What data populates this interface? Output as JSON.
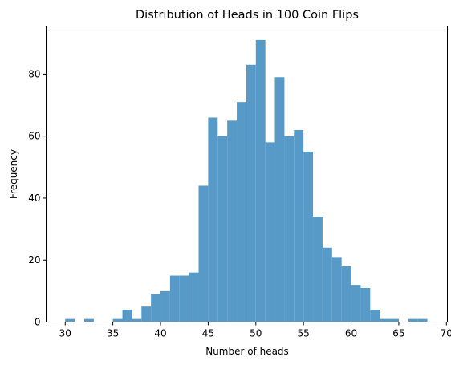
{
  "chart_data": {
    "type": "bar",
    "title": "Distribution of Heads in 100 Coin Flips",
    "xlabel": "Number of heads",
    "ylabel": "Frequency",
    "xlim": [
      28,
      70.1
    ],
    "ylim": [
      0,
      95.5
    ],
    "xticks": [
      30,
      35,
      40,
      45,
      50,
      55,
      60,
      65,
      70
    ],
    "yticks": [
      0,
      20,
      40,
      60,
      80
    ],
    "bar_color": "#5799c7",
    "bin_width": 1,
    "bins": [
      {
        "start": 30,
        "count": 1
      },
      {
        "start": 31,
        "count": 0
      },
      {
        "start": 32,
        "count": 1
      },
      {
        "start": 33,
        "count": 0
      },
      {
        "start": 34,
        "count": 0
      },
      {
        "start": 35,
        "count": 1
      },
      {
        "start": 36,
        "count": 4
      },
      {
        "start": 37,
        "count": 1
      },
      {
        "start": 38,
        "count": 5
      },
      {
        "start": 39,
        "count": 9
      },
      {
        "start": 40,
        "count": 10
      },
      {
        "start": 41,
        "count": 15
      },
      {
        "start": 42,
        "count": 15
      },
      {
        "start": 43,
        "count": 16
      },
      {
        "start": 44,
        "count": 44
      },
      {
        "start": 45,
        "count": 66
      },
      {
        "start": 46,
        "count": 60
      },
      {
        "start": 47,
        "count": 65
      },
      {
        "start": 48,
        "count": 71
      },
      {
        "start": 49,
        "count": 83
      },
      {
        "start": 50,
        "count": 91
      },
      {
        "start": 51,
        "count": 58
      },
      {
        "start": 52,
        "count": 79
      },
      {
        "start": 53,
        "count": 60
      },
      {
        "start": 54,
        "count": 62
      },
      {
        "start": 55,
        "count": 55
      },
      {
        "start": 56,
        "count": 34
      },
      {
        "start": 57,
        "count": 24
      },
      {
        "start": 58,
        "count": 21
      },
      {
        "start": 59,
        "count": 18
      },
      {
        "start": 60,
        "count": 12
      },
      {
        "start": 61,
        "count": 11
      },
      {
        "start": 62,
        "count": 4
      },
      {
        "start": 63,
        "count": 1
      },
      {
        "start": 64,
        "count": 1
      },
      {
        "start": 65,
        "count": 0
      },
      {
        "start": 66,
        "count": 1
      },
      {
        "start": 67,
        "count": 1
      }
    ]
  }
}
